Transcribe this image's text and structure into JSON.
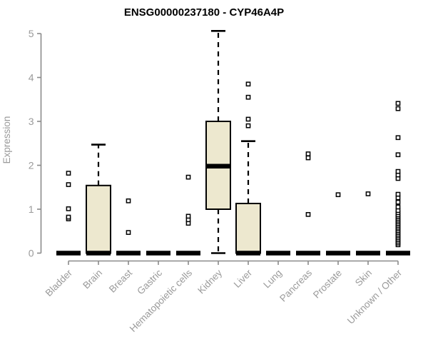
{
  "chart_data": {
    "type": "boxplot",
    "title": "ENSG00000237180 - CYP46A4P",
    "ylabel": "Expression",
    "xlabel": "",
    "ylim": [
      0,
      5
    ],
    "yticks": [
      0,
      1,
      2,
      3,
      4,
      5
    ],
    "grid": false,
    "legend": false,
    "categories": [
      "Bladder",
      "Brain",
      "Breast",
      "Gastric",
      "Hematopoietic cells",
      "Kidney",
      "Liver",
      "Lung",
      "Pancreas",
      "Prostate",
      "Skin",
      "Unknown / Other"
    ],
    "boxes": [
      {
        "category": "Bladder",
        "q1": 0,
        "median": 0,
        "q3": 0,
        "whisker_low": 0,
        "whisker_high": 0,
        "outliers": [
          0.78,
          0.82,
          1.01,
          1.56,
          1.82
        ]
      },
      {
        "category": "Brain",
        "q1": 0,
        "median": 0,
        "q3": 1.54,
        "whisker_low": 0,
        "whisker_high": 2.47,
        "outliers": []
      },
      {
        "category": "Breast",
        "q1": 0,
        "median": 0,
        "q3": 0,
        "whisker_low": 0,
        "whisker_high": 0,
        "outliers": [
          0.47,
          1.19
        ]
      },
      {
        "category": "Gastric",
        "q1": 0,
        "median": 0,
        "q3": 0,
        "whisker_low": 0,
        "whisker_high": 0,
        "outliers": []
      },
      {
        "category": "Hematopoietic cells",
        "q1": 0,
        "median": 0,
        "q3": 0,
        "whisker_low": 0,
        "whisker_high": 0,
        "outliers": [
          0.68,
          0.76,
          0.84,
          1.73
        ]
      },
      {
        "category": "Kidney",
        "q1": 1.0,
        "median": 1.98,
        "q3": 3.0,
        "whisker_low": 0,
        "whisker_high": 5.06,
        "outliers": []
      },
      {
        "category": "Liver",
        "q1": 0,
        "median": 0,
        "q3": 1.13,
        "whisker_low": 0,
        "whisker_high": 2.55,
        "outliers": [
          2.9,
          3.05,
          3.55,
          3.85
        ]
      },
      {
        "category": "Lung",
        "q1": 0,
        "median": 0,
        "q3": 0,
        "whisker_low": 0,
        "whisker_high": 0,
        "outliers": []
      },
      {
        "category": "Pancreas",
        "q1": 0,
        "median": 0,
        "q3": 0,
        "whisker_low": 0,
        "whisker_high": 0,
        "outliers": [
          0.88,
          2.17,
          2.26
        ]
      },
      {
        "category": "Prostate",
        "q1": 0,
        "median": 0,
        "q3": 0,
        "whisker_low": 0,
        "whisker_high": 0,
        "outliers": [
          1.33
        ]
      },
      {
        "category": "Skin",
        "q1": 0,
        "median": 0,
        "q3": 0,
        "whisker_low": 0,
        "whisker_high": 0,
        "outliers": [
          1.35
        ]
      },
      {
        "category": "Unknown / Other",
        "q1": 0,
        "median": 0,
        "q3": 0,
        "whisker_low": 0,
        "whisker_high": 0,
        "outliers": [
          0.19,
          0.23,
          0.27,
          0.31,
          0.35,
          0.39,
          0.43,
          0.47,
          0.51,
          0.55,
          0.59,
          0.63,
          0.67,
          0.71,
          0.75,
          0.79,
          0.83,
          0.87,
          0.92,
          0.97,
          1.05,
          1.16,
          1.26,
          1.34,
          1.7,
          1.78,
          1.86,
          2.24,
          2.63,
          3.29,
          3.41
        ]
      }
    ],
    "colors": {
      "box_fill": "#EDE8CF",
      "box_border": "#000000",
      "median": "#000000",
      "whisker": "#000000",
      "outlier": "#000000",
      "axis": "#8B8B8B",
      "tick_label": "#9A9A9A",
      "title": "#000000",
      "background": "#FFFFFF"
    }
  }
}
